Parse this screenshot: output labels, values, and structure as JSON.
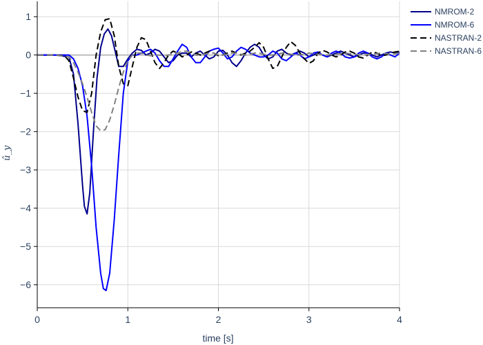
{
  "chart_data": {
    "type": "line",
    "xlabel": "time [s]",
    "ylabel": "û_y",
    "xlim": [
      0,
      4
    ],
    "ylim": [
      -6.6,
      1.4
    ],
    "x_ticks": [
      0,
      1,
      2,
      3,
      4
    ],
    "y_ticks": [
      1,
      0,
      -1,
      -2,
      -3,
      -4,
      -5,
      -6
    ],
    "x_tick_labels": [
      "0",
      "1",
      "2",
      "3",
      "4"
    ],
    "y_tick_labels": [
      "1",
      "0",
      "−1",
      "−2",
      "−3",
      "−4",
      "−5",
      "−6"
    ],
    "grid": true,
    "legend_position": "top-right",
    "series": [
      {
        "name": "NMROM-2",
        "color": "#00008b",
        "dash": "solid",
        "x": [
          0,
          0.2,
          0.35,
          0.4,
          0.45,
          0.5,
          0.52,
          0.55,
          0.58,
          0.62,
          0.66,
          0.7,
          0.74,
          0.78,
          0.82,
          0.86,
          0.9,
          0.95,
          1.0,
          1.05,
          1.1,
          1.15,
          1.2,
          1.25,
          1.3,
          1.35,
          1.4,
          1.45,
          1.5,
          1.55,
          1.6,
          1.65,
          1.7,
          1.75,
          1.8,
          1.85,
          1.9,
          1.95,
          2.0,
          2.05,
          2.1,
          2.15,
          2.2,
          2.25,
          2.3,
          2.35,
          2.4,
          2.45,
          2.5,
          2.55,
          2.6,
          2.65,
          2.7,
          2.75,
          2.8,
          2.85,
          2.9,
          2.95,
          3.0,
          3.05,
          3.1,
          3.15,
          3.2,
          3.25,
          3.3,
          3.35,
          3.4,
          3.45,
          3.5,
          3.55,
          3.6,
          3.65,
          3.7,
          3.75,
          3.8,
          3.85,
          3.9,
          3.95,
          4.0
        ],
        "y": [
          0,
          0,
          -0.05,
          -0.5,
          -1.8,
          -3.4,
          -3.95,
          -4.15,
          -3.6,
          -2.0,
          -0.6,
          0.2,
          0.55,
          0.68,
          0.5,
          0.1,
          -0.3,
          -0.3,
          -0.1,
          0.05,
          0.15,
          0.12,
          0.0,
          0.05,
          0.15,
          0.1,
          -0.05,
          -0.2,
          -0.15,
          0.0,
          0.05,
          0.05,
          -0.05,
          0.05,
          0.1,
          0.0,
          -0.1,
          -0.05,
          0.1,
          0.12,
          0.0,
          -0.2,
          -0.3,
          -0.15,
          0.05,
          0.2,
          0.28,
          0.2,
          0.0,
          -0.1,
          -0.05,
          0.1,
          0.15,
          0.05,
          0.0,
          0.05,
          0.1,
          0.05,
          -0.05,
          0.0,
          0.05,
          0.0,
          -0.05,
          0.0,
          0.05,
          0.1,
          0.05,
          0.0,
          -0.05,
          0.0,
          0.05,
          0.05,
          0.0,
          -0.05,
          0.0,
          0.05,
          0.08,
          0.05,
          0.08
        ]
      },
      {
        "name": "NMROM-6",
        "color": "#0000ff",
        "dash": "solid",
        "x": [
          0,
          0.2,
          0.35,
          0.4,
          0.45,
          0.5,
          0.55,
          0.6,
          0.65,
          0.7,
          0.73,
          0.76,
          0.8,
          0.85,
          0.9,
          0.95,
          1.0,
          1.05,
          1.1,
          1.15,
          1.2,
          1.25,
          1.3,
          1.35,
          1.4,
          1.45,
          1.5,
          1.55,
          1.6,
          1.65,
          1.7,
          1.75,
          1.8,
          1.85,
          1.9,
          1.95,
          2.0,
          2.05,
          2.1,
          2.15,
          2.2,
          2.25,
          2.3,
          2.35,
          2.4,
          2.45,
          2.5,
          2.55,
          2.6,
          2.65,
          2.7,
          2.75,
          2.8,
          2.85,
          2.9,
          2.95,
          3.0,
          3.05,
          3.1,
          3.15,
          3.2,
          3.25,
          3.3,
          3.35,
          3.4,
          3.45,
          3.5,
          3.55,
          3.6,
          3.65,
          3.7,
          3.75,
          3.8,
          3.85,
          3.9,
          3.95,
          4.0
        ],
        "y": [
          0,
          0,
          0,
          -0.1,
          -0.35,
          -0.8,
          -1.6,
          -2.9,
          -4.5,
          -5.7,
          -6.1,
          -6.15,
          -5.7,
          -4.3,
          -2.6,
          -1.0,
          -0.15,
          0.0,
          0.0,
          0.05,
          0.1,
          0.15,
          0.05,
          -0.15,
          -0.3,
          -0.3,
          -0.1,
          0.1,
          0.28,
          0.2,
          -0.05,
          -0.2,
          -0.2,
          -0.05,
          0.1,
          0.15,
          0.18,
          0.05,
          -0.1,
          -0.05,
          0.1,
          0.2,
          0.15,
          0.05,
          0.0,
          -0.05,
          -0.05,
          0.0,
          0.1,
          0.05,
          -0.1,
          -0.15,
          -0.05,
          0.05,
          0.0,
          -0.1,
          -0.05,
          0.05,
          0.08,
          0.0,
          -0.05,
          0.05,
          0.1,
          0.05,
          -0.05,
          -0.08,
          -0.05,
          0.05,
          0.1,
          0.05,
          -0.05,
          -0.1,
          -0.05,
          0.05,
          0.0,
          -0.05,
          0.05
        ]
      },
      {
        "name": "NASTRAN-2",
        "color": "#000000",
        "dash": "dash",
        "x": [
          0,
          0.2,
          0.3,
          0.35,
          0.4,
          0.45,
          0.5,
          0.55,
          0.6,
          0.65,
          0.7,
          0.75,
          0.8,
          0.85,
          0.9,
          0.95,
          1.0,
          1.05,
          1.1,
          1.15,
          1.2,
          1.25,
          1.3,
          1.35,
          1.4,
          1.45,
          1.5,
          1.55,
          1.6,
          1.65,
          1.7,
          1.75,
          1.8,
          1.85,
          1.9,
          1.95,
          2.0,
          2.05,
          2.1,
          2.15,
          2.2,
          2.25,
          2.3,
          2.35,
          2.4,
          2.45,
          2.5,
          2.55,
          2.6,
          2.65,
          2.7,
          2.75,
          2.8,
          2.85,
          2.9,
          2.95,
          3.0,
          3.05,
          3.1,
          3.15,
          3.2,
          3.25,
          3.3,
          3.35,
          3.4,
          3.45,
          3.5,
          3.55,
          3.6,
          3.65,
          3.7,
          3.75,
          3.8,
          3.85,
          3.9,
          3.95,
          4.0
        ],
        "y": [
          0,
          0,
          -0.02,
          -0.15,
          -0.6,
          -1.1,
          -1.45,
          -1.5,
          -1.0,
          0.0,
          0.6,
          0.92,
          0.95,
          0.5,
          -0.3,
          -0.75,
          -0.8,
          -0.3,
          0.2,
          0.45,
          0.4,
          0.1,
          -0.2,
          -0.35,
          -0.2,
          0.0,
          0.1,
          0.05,
          -0.05,
          0.0,
          0.08,
          0.05,
          0.0,
          0.05,
          0.1,
          0.05,
          -0.02,
          0.0,
          0.05,
          0.1,
          0.05,
          0.0,
          0.05,
          0.1,
          0.2,
          0.32,
          0.2,
          -0.1,
          -0.35,
          -0.3,
          -0.05,
          0.2,
          0.35,
          0.25,
          0.05,
          -0.1,
          -0.22,
          -0.15,
          0.05,
          0.12,
          0.08,
          0.0,
          -0.05,
          0.0,
          0.08,
          0.1,
          0.05,
          -0.05,
          -0.08,
          0.0,
          0.08,
          0.05,
          -0.02,
          0.0,
          0.05,
          0.08,
          0.1
        ]
      },
      {
        "name": "NASTRAN-6",
        "color": "#808080",
        "dash": "dash",
        "x": [
          0,
          0.2,
          0.35,
          0.4,
          0.45,
          0.5,
          0.55,
          0.6,
          0.65,
          0.7,
          0.75,
          0.8,
          0.85,
          0.9,
          0.95,
          1.0,
          1.05,
          1.1,
          1.15,
          1.2,
          1.25,
          1.3,
          1.35,
          1.4,
          1.45,
          1.5,
          1.55,
          1.6,
          1.65,
          1.7,
          1.75,
          1.8,
          1.85,
          1.9,
          1.95,
          2.0,
          2.05,
          2.1,
          2.15,
          2.2,
          2.25,
          2.3,
          2.35,
          2.4,
          2.45,
          2.5,
          2.55,
          2.6,
          2.65,
          2.7,
          2.75,
          2.8,
          2.85,
          2.9,
          2.95,
          3.0,
          3.1,
          3.2,
          3.3,
          3.4,
          3.5,
          3.6,
          3.7,
          3.8,
          3.9,
          4.0
        ],
        "y": [
          0,
          0,
          -0.05,
          -0.2,
          -0.45,
          -0.75,
          -1.1,
          -1.5,
          -1.85,
          -1.98,
          -1.95,
          -1.7,
          -1.3,
          -0.85,
          -0.45,
          -0.15,
          0.0,
          0.05,
          0.05,
          0.0,
          -0.02,
          0.0,
          0.0,
          -0.02,
          0.0,
          0.02,
          0.05,
          0.1,
          0.1,
          0.05,
          0.0,
          0.0,
          0.02,
          0.05,
          0.05,
          0.0,
          0.0,
          0.02,
          0.05,
          0.05,
          0.02,
          0.0,
          0.02,
          0.05,
          0.05,
          0.02,
          0.0,
          0.0,
          0.02,
          0.05,
          0.05,
          0.02,
          0.0,
          0.0,
          0.02,
          0.05,
          0.02,
          0.0,
          0.02,
          0.05,
          0.02,
          0.0,
          0.02,
          0.05,
          0.02,
          0.05
        ]
      }
    ]
  }
}
